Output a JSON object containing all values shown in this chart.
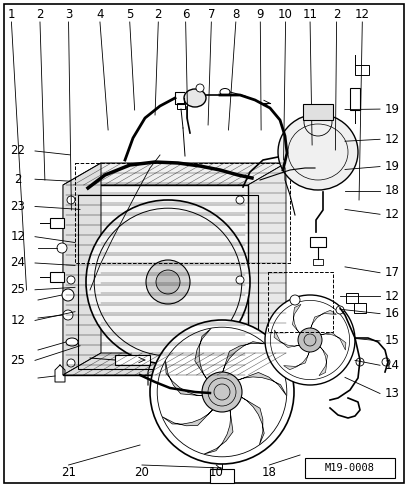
{
  "background_color": "#ffffff",
  "border_color": "#000000",
  "diagram_id": "M19-0008",
  "font_size": 8.5,
  "line_color": "#000000",
  "text_color": "#000000",
  "top_labels": [
    [
      "1",
      0.028
    ],
    [
      "2",
      0.098
    ],
    [
      "3",
      0.168
    ],
    [
      "4",
      0.245
    ],
    [
      "5",
      0.318
    ],
    [
      "2",
      0.388
    ],
    [
      "6",
      0.455
    ],
    [
      "7",
      0.518
    ],
    [
      "8",
      0.578
    ],
    [
      "9",
      0.638
    ],
    [
      "10",
      0.7
    ],
    [
      "11",
      0.76
    ],
    [
      "2",
      0.825
    ],
    [
      "12",
      0.888
    ]
  ],
  "left_labels": [
    [
      "25",
      0.74
    ],
    [
      "12",
      0.658
    ],
    [
      "25",
      0.595
    ],
    [
      "24",
      0.54
    ],
    [
      "12",
      0.486
    ],
    [
      "23",
      0.424
    ],
    [
      "2",
      0.368
    ],
    [
      "22",
      0.31
    ]
  ],
  "right_labels": [
    [
      "13",
      0.808
    ],
    [
      "14",
      0.75
    ],
    [
      "15",
      0.7
    ],
    [
      "16",
      0.644
    ],
    [
      "12",
      0.608
    ],
    [
      "17",
      0.56
    ],
    [
      "12",
      0.44
    ],
    [
      "18",
      0.392
    ],
    [
      "19",
      0.342
    ],
    [
      "12",
      0.286
    ],
    [
      "19",
      0.224
    ]
  ],
  "bottom_labels": [
    [
      "21",
      0.168
    ],
    [
      "20",
      0.348
    ],
    [
      "10",
      0.53
    ],
    [
      "18",
      0.66
    ]
  ]
}
